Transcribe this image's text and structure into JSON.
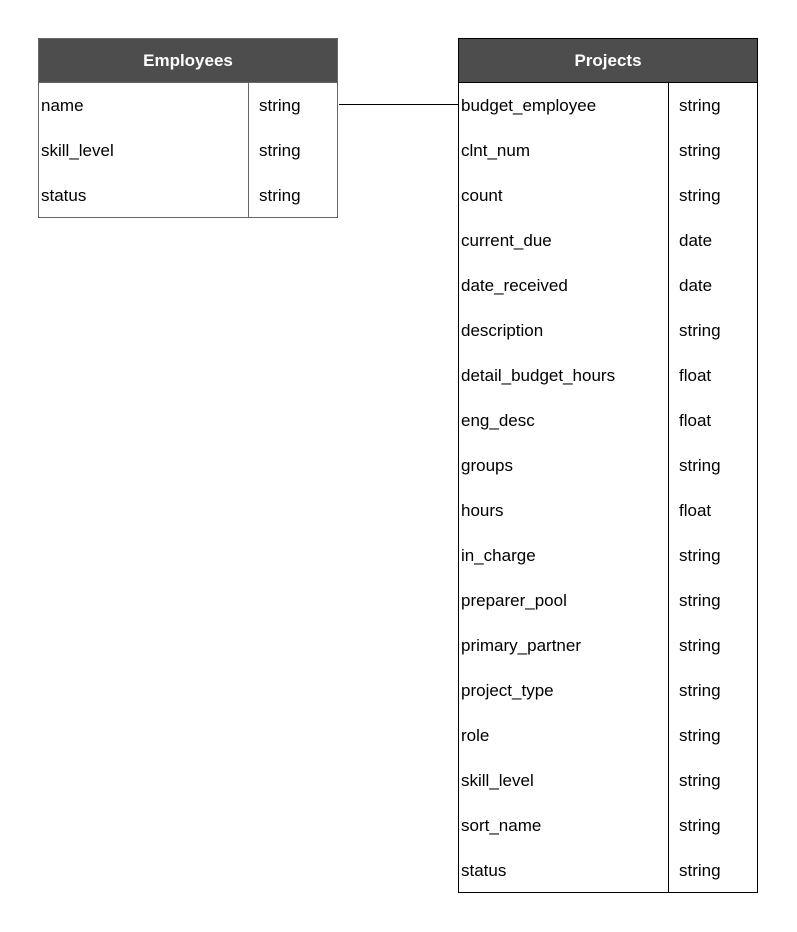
{
  "tables": [
    {
      "title": "Employees",
      "fields": [
        {
          "name": "name",
          "type": "string"
        },
        {
          "name": "skill_level",
          "type": "string"
        },
        {
          "name": "status",
          "type": "string"
        }
      ]
    },
    {
      "title": "Projects",
      "fields": [
        {
          "name": "budget_employee",
          "type": "string"
        },
        {
          "name": "clnt_num",
          "type": "string"
        },
        {
          "name": "count",
          "type": "string"
        },
        {
          "name": "current_due",
          "type": "date"
        },
        {
          "name": "date_received",
          "type": "date"
        },
        {
          "name": "description",
          "type": "string"
        },
        {
          "name": "detail_budget_hours",
          "type": "float"
        },
        {
          "name": "eng_desc",
          "type": "float"
        },
        {
          "name": "groups",
          "type": "string"
        },
        {
          "name": "hours",
          "type": "float"
        },
        {
          "name": "in_charge",
          "type": "string"
        },
        {
          "name": "preparer_pool",
          "type": "string"
        },
        {
          "name": "primary_partner",
          "type": "string"
        },
        {
          "name": "project_type",
          "type": "string"
        },
        {
          "name": "role",
          "type": "string"
        },
        {
          "name": "skill_level",
          "type": "string"
        },
        {
          "name": "sort_name",
          "type": "string"
        },
        {
          "name": "status",
          "type": "string"
        }
      ]
    }
  ],
  "relationships": [
    {
      "from": "Employees.name",
      "to": "Projects.budget_employee"
    }
  ],
  "colors": {
    "header_bg": "#4d4d4d",
    "header_text": "#ffffff",
    "employees_border": "#666666",
    "projects_border": "#000000"
  }
}
